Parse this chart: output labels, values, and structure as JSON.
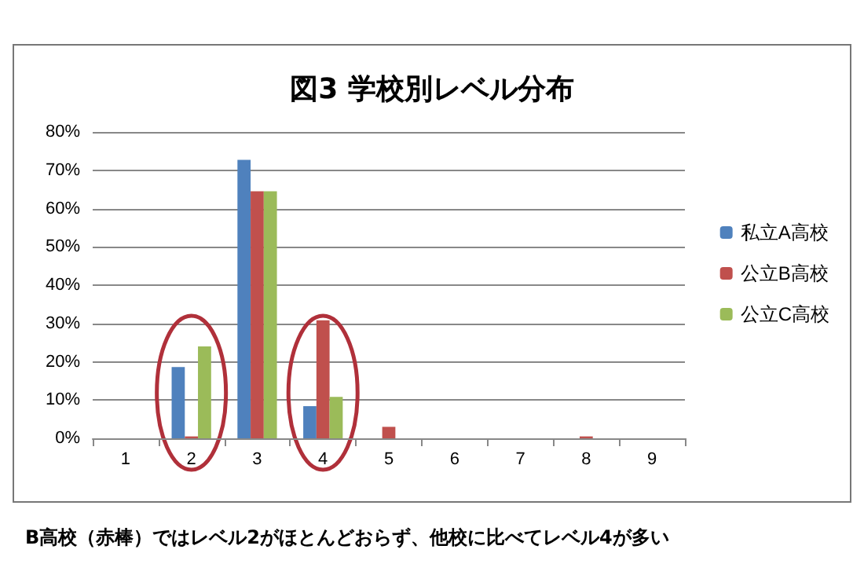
{
  "chart_data": {
    "type": "bar",
    "title": "図3 学校別レベル分布",
    "categories": [
      "1",
      "2",
      "3",
      "4",
      "5",
      "6",
      "7",
      "8",
      "9"
    ],
    "series": [
      {
        "name": "私立A高校",
        "color": "#4f81bd",
        "values": [
          0,
          18.6,
          72.7,
          8.4,
          0,
          0,
          0,
          0,
          0
        ]
      },
      {
        "name": "公立B高校",
        "color": "#c0504d",
        "values": [
          0,
          0.5,
          64.5,
          30.8,
          3,
          0,
          0,
          0.5,
          0
        ]
      },
      {
        "name": "公立C高校",
        "color": "#9bbb59",
        "values": [
          0,
          24,
          64.5,
          10.8,
          0,
          0,
          0,
          0,
          0
        ]
      }
    ],
    "ylim": [
      0,
      80
    ],
    "yticks": [
      {
        "value": 0,
        "label": "0%"
      },
      {
        "value": 10,
        "label": "10%"
      },
      {
        "value": 20,
        "label": "20%"
      },
      {
        "value": 30,
        "label": "30%"
      },
      {
        "value": 40,
        "label": "40%"
      },
      {
        "value": 50,
        "label": "50%"
      },
      {
        "value": 60,
        "label": "60%"
      },
      {
        "value": 70,
        "label": "70%"
      },
      {
        "value": 80,
        "label": "80%"
      }
    ],
    "grid": "y",
    "legend": "right",
    "annotations": [
      "B高校（赤棒）ではレベル2がほとんどおらず、他校に比べてレベル4が多い"
    ]
  }
}
